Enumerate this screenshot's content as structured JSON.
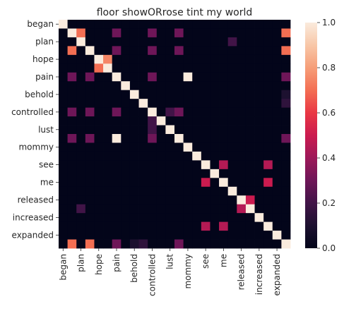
{
  "chart_data": {
    "type": "heatmap",
    "title": "floor showORrose tint my world",
    "xlabel": "",
    "ylabel": "",
    "rows": [
      "began",
      "",
      "plan",
      "",
      "hope",
      "",
      "pain",
      "",
      "behold",
      "",
      "controlled",
      "",
      "lust",
      "",
      "mommy",
      "",
      "see",
      "",
      "me",
      "",
      "released",
      "",
      "increased",
      "",
      "expanded",
      ""
    ],
    "columns": [
      "began",
      "",
      "plan",
      "",
      "hope",
      "",
      "pain",
      "",
      "behold",
      "",
      "controlled",
      "",
      "lust",
      "",
      "mommy",
      "",
      "see",
      "",
      "me",
      "",
      "released",
      "",
      "increased",
      "",
      "expanded",
      ""
    ],
    "colorbar": {
      "min": 0.0,
      "max": 1.0,
      "ticks": [
        "0.0",
        "0.2",
        "0.4",
        "0.6",
        "0.8",
        "1.0"
      ]
    },
    "values": [
      [
        1,
        0,
        0,
        0,
        0,
        0,
        0,
        0,
        0,
        0,
        0,
        0,
        0,
        0,
        0,
        0,
        0,
        0,
        0,
        0,
        0,
        0,
        0,
        0,
        0,
        0
      ],
      [
        0,
        1,
        0.7,
        0,
        0,
        0,
        0.3,
        0,
        0,
        0,
        0.3,
        0,
        0,
        0.3,
        0,
        0,
        0,
        0,
        0,
        0,
        0,
        0,
        0,
        0,
        0,
        0.7
      ],
      [
        0,
        0,
        1,
        0,
        0,
        0,
        0,
        0,
        0,
        0,
        0,
        0,
        0,
        0,
        0,
        0,
        0,
        0,
        0,
        0.2,
        0,
        0,
        0,
        0,
        0,
        0
      ],
      [
        0,
        0.7,
        0,
        1,
        0,
        0,
        0.3,
        0,
        0,
        0,
        0.3,
        0,
        0,
        0.3,
        0,
        0,
        0,
        0,
        0,
        0,
        0,
        0,
        0,
        0,
        0,
        0.7
      ],
      [
        0,
        0,
        0,
        0,
        1,
        0.75,
        0,
        0,
        0,
        0,
        0,
        0,
        0,
        0,
        0,
        0,
        0,
        0,
        0,
        0,
        0,
        0,
        0,
        0,
        0,
        0
      ],
      [
        0,
        0,
        0,
        0,
        0.7,
        1,
        0,
        0,
        0,
        0,
        0,
        0,
        0,
        0,
        0,
        0,
        0,
        0,
        0,
        0,
        0,
        0,
        0,
        0,
        0,
        0
      ],
      [
        0,
        0.3,
        0,
        0.3,
        0,
        0,
        1,
        0,
        0,
        0,
        0.3,
        0,
        0,
        0,
        1,
        0,
        0,
        0,
        0,
        0,
        0,
        0,
        0,
        0,
        0,
        0.3
      ],
      [
        0,
        0,
        0,
        0,
        0,
        0,
        0,
        1,
        0,
        0,
        0,
        0,
        0,
        0,
        0,
        0,
        0,
        0,
        0,
        0,
        0,
        0,
        0,
        0,
        0,
        0
      ],
      [
        0,
        0,
        0,
        0,
        0,
        0,
        0,
        0,
        1,
        0,
        0,
        0,
        0,
        0,
        0,
        0,
        0,
        0,
        0,
        0,
        0,
        0,
        0,
        0,
        0,
        0.1
      ],
      [
        0,
        0,
        0,
        0,
        0,
        0,
        0,
        0,
        0,
        1,
        0,
        0,
        0,
        0,
        0,
        0,
        0,
        0,
        0,
        0,
        0,
        0,
        0,
        0,
        0,
        0.15
      ],
      [
        0,
        0.3,
        0,
        0.3,
        0,
        0,
        0.3,
        0,
        0,
        0,
        1,
        0,
        0.2,
        0.3,
        0,
        0,
        0,
        0,
        0,
        0,
        0,
        0,
        0,
        0,
        0,
        0
      ],
      [
        0,
        0,
        0,
        0,
        0,
        0,
        0,
        0,
        0,
        0,
        0.2,
        1,
        0,
        0,
        0,
        0,
        0,
        0,
        0,
        0,
        0,
        0,
        0,
        0,
        0,
        0
      ],
      [
        0,
        0,
        0,
        0,
        0,
        0,
        0,
        0,
        0,
        0,
        0.2,
        0,
        1,
        0,
        0,
        0,
        0,
        0,
        0,
        0,
        0,
        0,
        0,
        0,
        0,
        0
      ],
      [
        0,
        0.3,
        0,
        0.3,
        0,
        0,
        1,
        0,
        0,
        0,
        0.3,
        0,
        0,
        1,
        0,
        0,
        0,
        0,
        0,
        0,
        0,
        0,
        0,
        0,
        0,
        0.3
      ],
      [
        0,
        0,
        0,
        0,
        0,
        0,
        0,
        0,
        0,
        0,
        0,
        0,
        0,
        0,
        1,
        0,
        0,
        0,
        0,
        0,
        0,
        0,
        0,
        0,
        0,
        0
      ],
      [
        0,
        0,
        0,
        0,
        0,
        0,
        0,
        0,
        0,
        0,
        0,
        0,
        0,
        0,
        0,
        1,
        0,
        0,
        0,
        0,
        0,
        0,
        0,
        0,
        0,
        0
      ],
      [
        0,
        0,
        0,
        0,
        0,
        0,
        0,
        0,
        0,
        0,
        0,
        0,
        0,
        0,
        0,
        0,
        1,
        0,
        0.45,
        0,
        0,
        0,
        0,
        0.45,
        0,
        0
      ],
      [
        0,
        0,
        0,
        0,
        0,
        0,
        0,
        0,
        0,
        0,
        0,
        0,
        0,
        0,
        0,
        0,
        0,
        1,
        0,
        0,
        0,
        0,
        0,
        0,
        0,
        0
      ],
      [
        0,
        0,
        0,
        0,
        0,
        0,
        0,
        0,
        0,
        0,
        0,
        0,
        0,
        0,
        0,
        0,
        0.5,
        0,
        1,
        0,
        0,
        0,
        0,
        0.5,
        0,
        0
      ],
      [
        0,
        0,
        0,
        0,
        0,
        0,
        0,
        0,
        0,
        0,
        0,
        0,
        0,
        0,
        0,
        0,
        0,
        0,
        0,
        1,
        0,
        0,
        0,
        0,
        0,
        0
      ],
      [
        0,
        0,
        0,
        0,
        0,
        0,
        0,
        0,
        0,
        0,
        0,
        0,
        0,
        0,
        0,
        0,
        0,
        0,
        0,
        0,
        1,
        0.5,
        0,
        0,
        0,
        0
      ],
      [
        0,
        0,
        0.2,
        0,
        0,
        0,
        0,
        0,
        0,
        0,
        0,
        0,
        0,
        0,
        0,
        0,
        0,
        0,
        0,
        0,
        0.45,
        1,
        0,
        0,
        0,
        0
      ],
      [
        0,
        0,
        0,
        0,
        0,
        0,
        0,
        0,
        0,
        0,
        0,
        0,
        0,
        0,
        0,
        0,
        0,
        0,
        0,
        0,
        0,
        0,
        1,
        0,
        0,
        0
      ],
      [
        0,
        0,
        0,
        0,
        0,
        0,
        0,
        0,
        0,
        0,
        0,
        0,
        0,
        0,
        0,
        0,
        0.45,
        0,
        0.45,
        0,
        0,
        0,
        0,
        1,
        0,
        0
      ],
      [
        0,
        0,
        0,
        0,
        0,
        0,
        0,
        0,
        0,
        0,
        0,
        0,
        0,
        0,
        0,
        0,
        0,
        0,
        0,
        0,
        0,
        0,
        0,
        0,
        1,
        0
      ],
      [
        0,
        0.7,
        0,
        0.7,
        0,
        0,
        0.3,
        0,
        0.1,
        0.15,
        0,
        0,
        0,
        0.3,
        0,
        0,
        0,
        0,
        0,
        0,
        0,
        0,
        0,
        0,
        0,
        1
      ]
    ]
  }
}
